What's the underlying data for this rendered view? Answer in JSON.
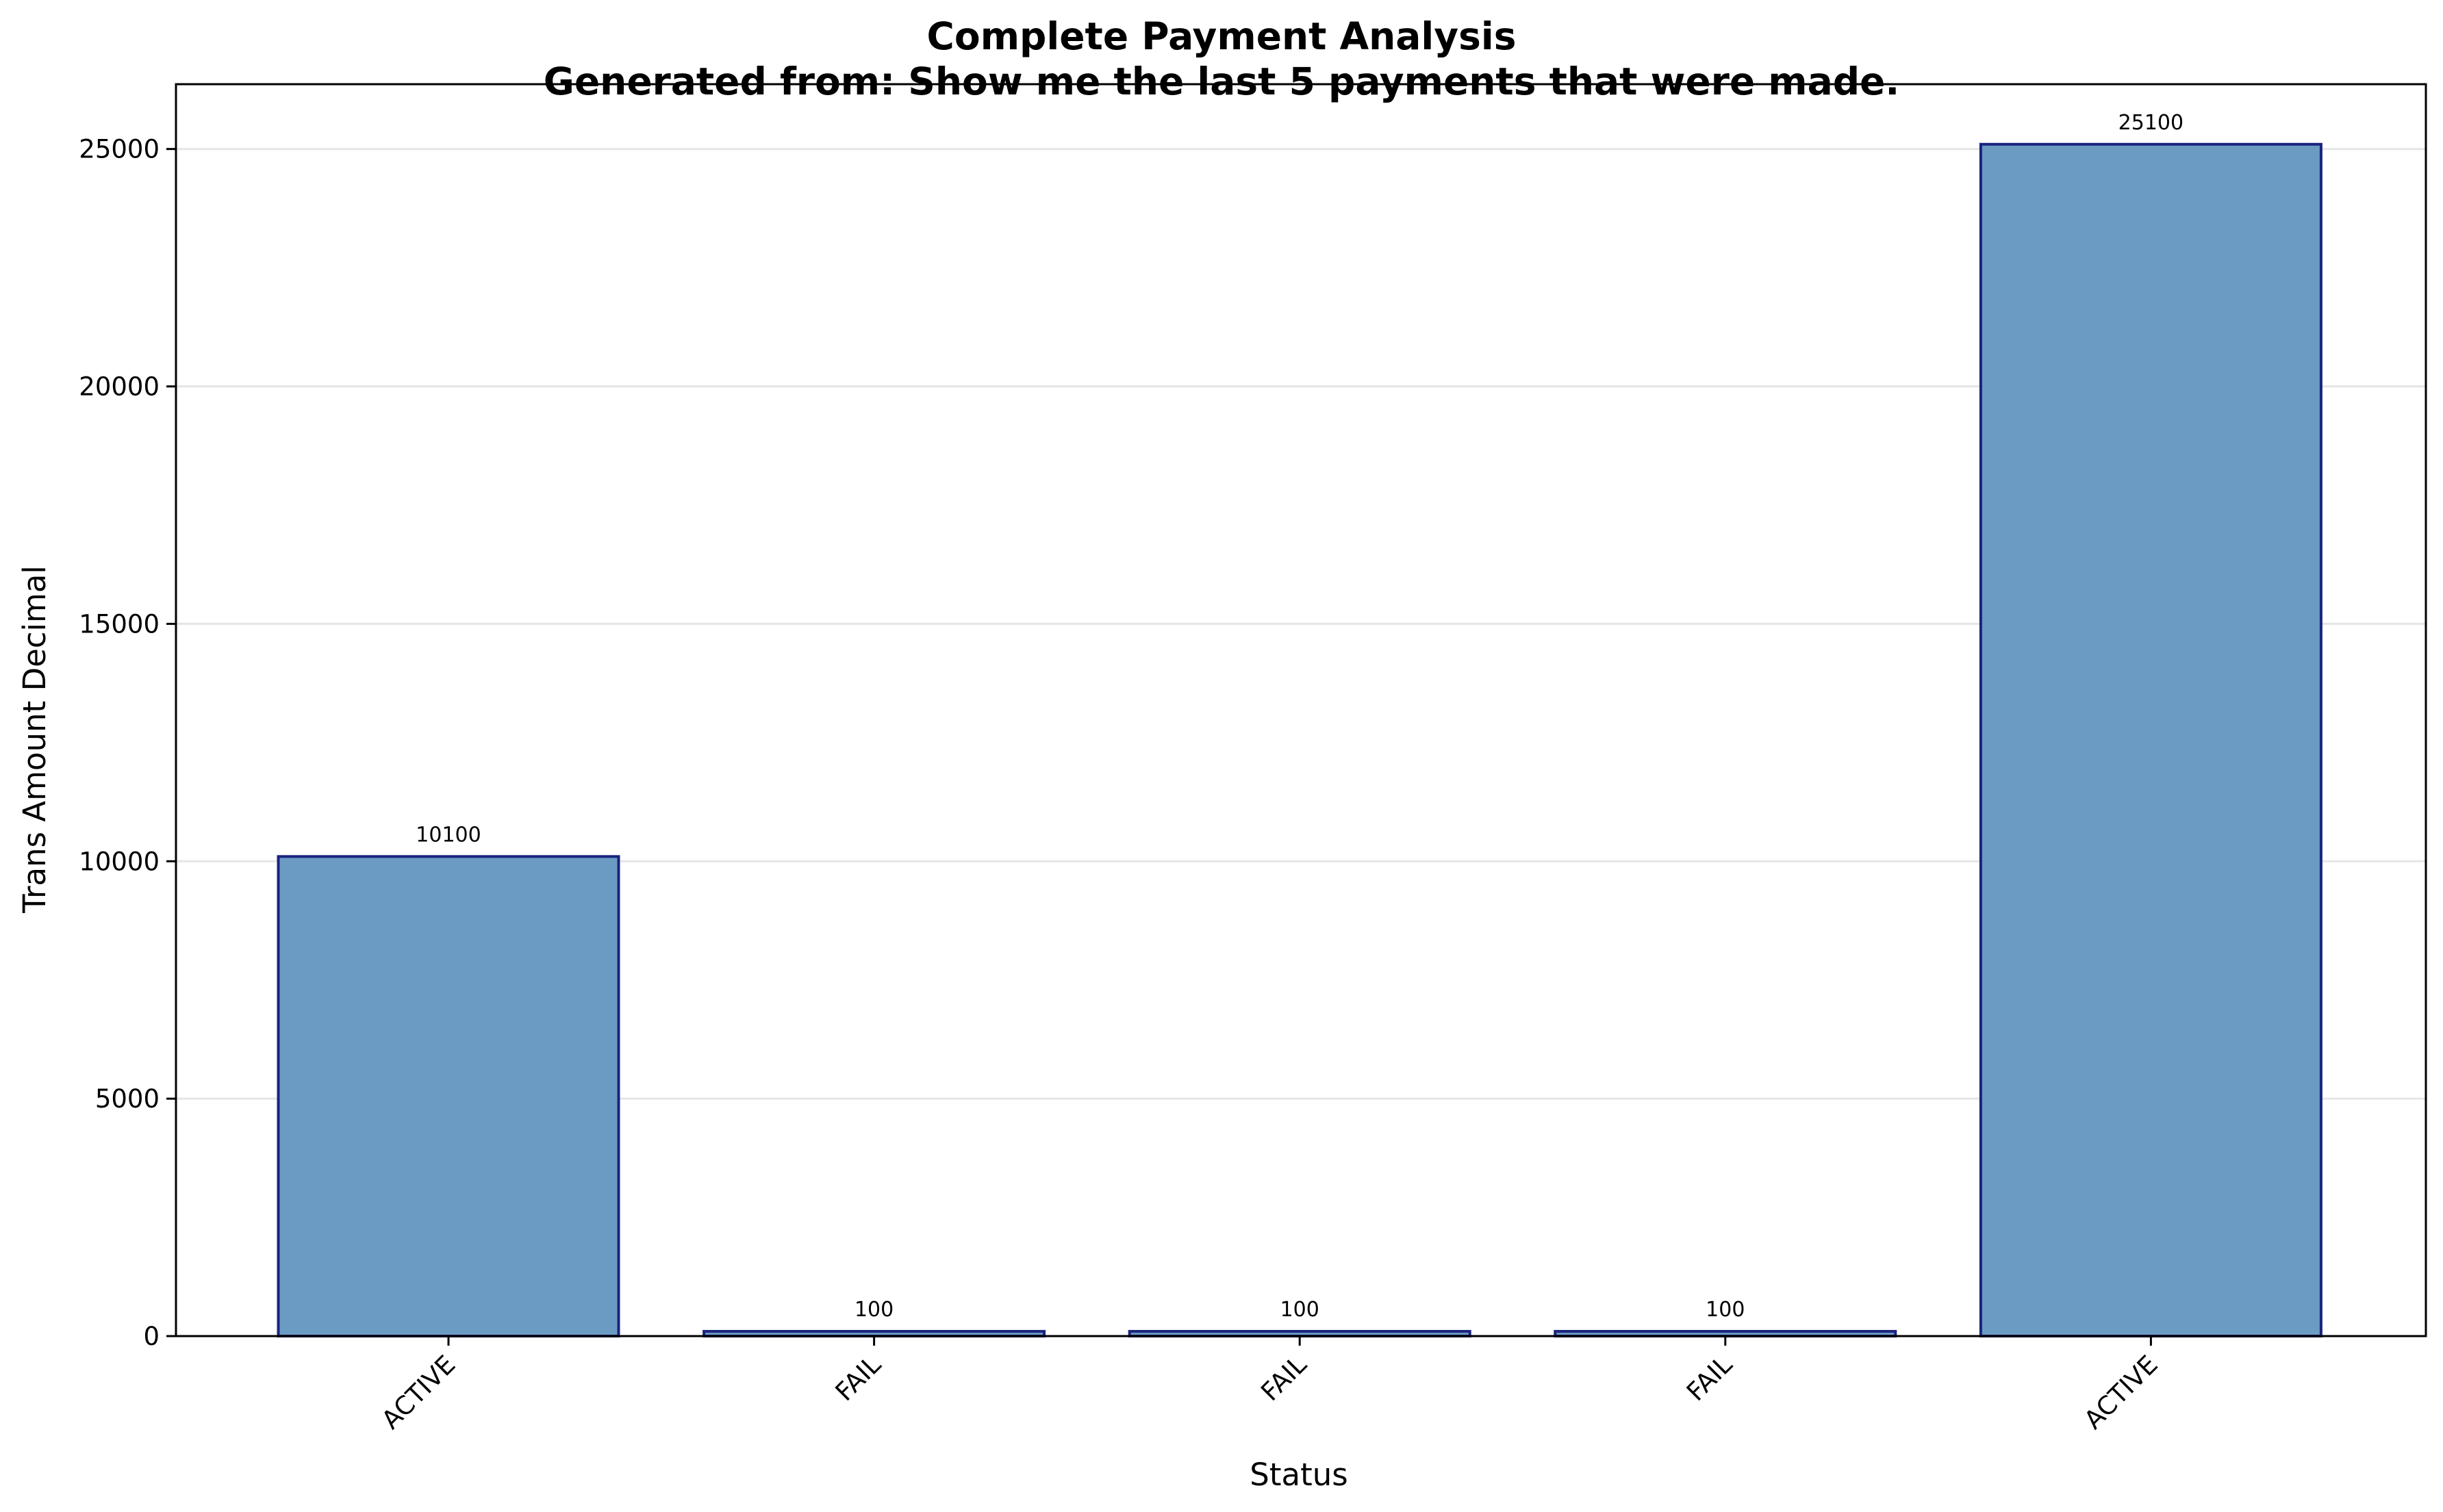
{
  "chart_data": {
    "type": "bar",
    "title": "Complete Payment Analysis",
    "subtitle": "Generated from: Show me the last 5 payments that were made.",
    "xlabel": "Status",
    "ylabel": "Trans Amount Decimal",
    "categories": [
      "ACTIVE",
      "FAIL",
      "FAIL",
      "FAIL",
      "ACTIVE"
    ],
    "values": [
      10100,
      100,
      100,
      100,
      25100
    ],
    "data_labels": [
      "10100",
      "100",
      "100",
      "100",
      "25100"
    ],
    "ylim": [
      0,
      26365
    ],
    "yticks": [
      0,
      5000,
      10000,
      15000,
      20000,
      25000
    ],
    "ytick_labels": [
      "0",
      "5000",
      "10000",
      "15000",
      "20000",
      "25000"
    ],
    "grid": "horizontal",
    "bar_color": "#6b9bc3",
    "bar_edge_color": "#1a237e",
    "grid_color": "#e5e5e5"
  }
}
